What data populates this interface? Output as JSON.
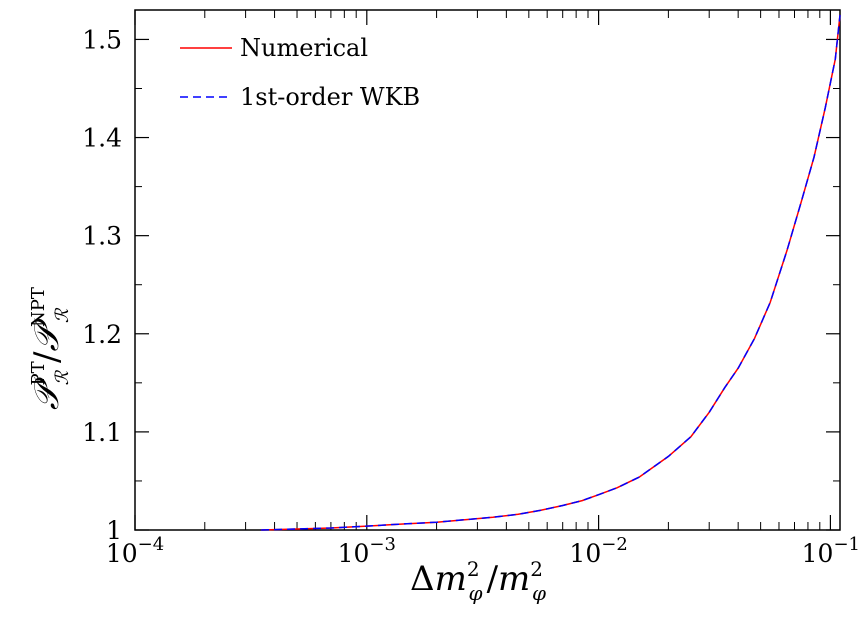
{
  "chart_data": {
    "type": "line",
    "title": "",
    "xlabel": "Δm²_φ/m²_φ",
    "ylabel": "P_R^PT/P_R^NPT",
    "xscale": "log",
    "xlim": [
      0.0001,
      0.11
    ],
    "ylim": [
      1.0,
      1.53
    ],
    "grid": false,
    "legend_position": "top-left",
    "x_ticks": [
      {
        "value": 0.0001,
        "base": "10",
        "exp": "−4"
      },
      {
        "value": 0.001,
        "base": "10",
        "exp": "−3"
      },
      {
        "value": 0.01,
        "base": "10",
        "exp": "−2"
      },
      {
        "value": 0.1,
        "base": "10",
        "exp": "−1"
      }
    ],
    "y_ticks": [
      {
        "value": 1.0,
        "label": "1"
      },
      {
        "value": 1.1,
        "label": "1.1"
      },
      {
        "value": 1.2,
        "label": "1.2"
      },
      {
        "value": 1.3,
        "label": "1.3"
      },
      {
        "value": 1.4,
        "label": "1.4"
      },
      {
        "value": 1.5,
        "label": "1.5"
      }
    ],
    "series": [
      {
        "name": "Numerical",
        "color": "#ff0000",
        "style": "solid",
        "x": [
          0.00035,
          0.0005,
          0.0007,
          0.001,
          0.0014,
          0.002,
          0.0028,
          0.0035,
          0.0045,
          0.0056,
          0.007,
          0.0085,
          0.01,
          0.012,
          0.015,
          0.02,
          0.025,
          0.03,
          0.035,
          0.04,
          0.047,
          0.055,
          0.065,
          0.075,
          0.085,
          0.095,
          0.105,
          0.11
        ],
        "y": [
          1.0,
          1.001,
          1.002,
          1.004,
          1.006,
          1.008,
          1.011,
          1.013,
          1.016,
          1.02,
          1.025,
          1.03,
          1.036,
          1.043,
          1.054,
          1.075,
          1.095,
          1.12,
          1.145,
          1.165,
          1.195,
          1.232,
          1.285,
          1.335,
          1.38,
          1.43,
          1.48,
          1.525
        ]
      },
      {
        "name": "1st-order WKB",
        "color": "#0000ff",
        "style": "dashed",
        "x": [
          0.00035,
          0.0005,
          0.0007,
          0.001,
          0.0014,
          0.002,
          0.0028,
          0.0035,
          0.0045,
          0.0056,
          0.007,
          0.0085,
          0.01,
          0.012,
          0.015,
          0.02,
          0.025,
          0.03,
          0.035,
          0.04,
          0.047,
          0.055,
          0.065,
          0.075,
          0.085,
          0.095,
          0.105,
          0.11
        ],
        "y": [
          1.0,
          1.001,
          1.002,
          1.004,
          1.006,
          1.008,
          1.011,
          1.013,
          1.016,
          1.02,
          1.025,
          1.03,
          1.036,
          1.043,
          1.054,
          1.075,
          1.095,
          1.12,
          1.145,
          1.165,
          1.195,
          1.232,
          1.285,
          1.335,
          1.38,
          1.43,
          1.48,
          1.525
        ]
      }
    ]
  }
}
